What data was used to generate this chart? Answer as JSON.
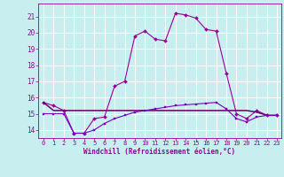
{
  "xlabel": "Windchill (Refroidissement éolien,°C)",
  "background_color": "#c8eef0",
  "grid_color": "#ffffff",
  "line_color": "#990099",
  "line2_color": "#660066",
  "line3_color": "#7700bb",
  "xlim": [
    -0.5,
    23.4
  ],
  "ylim": [
    13.5,
    21.8
  ],
  "yticks": [
    14,
    15,
    16,
    17,
    18,
    19,
    20,
    21
  ],
  "xticks": [
    0,
    1,
    2,
    3,
    4,
    5,
    6,
    7,
    8,
    9,
    10,
    11,
    12,
    13,
    14,
    15,
    16,
    17,
    18,
    19,
    20,
    21,
    22,
    23
  ],
  "line1_x": [
    0,
    1,
    2,
    3,
    4,
    5,
    6,
    7,
    8,
    9,
    10,
    11,
    12,
    13,
    14,
    15,
    16,
    17,
    18,
    19,
    20,
    21,
    22,
    23
  ],
  "line1_y": [
    15.7,
    15.5,
    15.2,
    13.8,
    13.8,
    14.7,
    14.8,
    16.7,
    17.0,
    19.8,
    20.1,
    19.6,
    19.5,
    21.2,
    21.1,
    20.9,
    20.2,
    20.1,
    17.5,
    15.0,
    14.7,
    15.2,
    14.9,
    14.9
  ],
  "line2_x": [
    0,
    1,
    2,
    3,
    4,
    5,
    6,
    7,
    8,
    9,
    10,
    11,
    12,
    13,
    14,
    15,
    16,
    17,
    18,
    19,
    20,
    21,
    22,
    23
  ],
  "line2_y": [
    15.7,
    15.2,
    15.2,
    15.2,
    15.2,
    15.2,
    15.2,
    15.2,
    15.2,
    15.2,
    15.2,
    15.2,
    15.2,
    15.2,
    15.2,
    15.2,
    15.2,
    15.2,
    15.2,
    15.2,
    15.2,
    15.1,
    14.9,
    14.9
  ],
  "line3_x": [
    0,
    1,
    2,
    3,
    4,
    5,
    6,
    7,
    8,
    9,
    10,
    11,
    12,
    13,
    14,
    15,
    16,
    17,
    18,
    19,
    20,
    21,
    22,
    23
  ],
  "line3_y": [
    15.0,
    15.0,
    15.0,
    13.8,
    13.8,
    14.0,
    14.4,
    14.7,
    14.9,
    15.1,
    15.2,
    15.3,
    15.4,
    15.5,
    15.55,
    15.6,
    15.65,
    15.7,
    15.3,
    14.7,
    14.5,
    14.8,
    14.9,
    14.9
  ],
  "tick_fontsize": 5.0,
  "xlabel_fontsize": 5.5
}
